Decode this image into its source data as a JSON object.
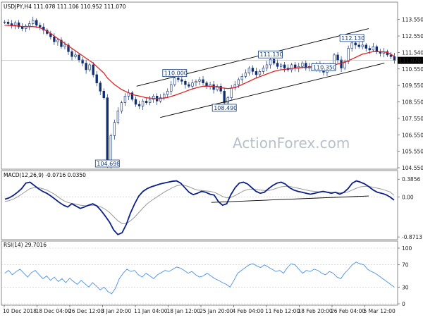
{
  "colors": {
    "candle": "#0f2f73",
    "ma": "#e02020",
    "channel": "#000000",
    "macd": "#0b1f8a",
    "signal": "#999999",
    "rsi": "#4a90e2",
    "grid": "#b8b8b8",
    "current_price_bg": "#000000",
    "current_price_text": "#ffffff",
    "tag_border": "#123a7a"
  },
  "chart_data": [
    {
      "type": "candlestick",
      "title": "USDJPY,H4  111.078 111.106 110.952 111.070",
      "watermark": "ActionForex.com",
      "ylim": [
        104.55,
        114.05
      ],
      "y_ticks": [
        "113.550",
        "112.550",
        "111.540",
        "110.550",
        "109.550",
        "108.550",
        "107.550",
        "106.550",
        "105.550",
        "104.550"
      ],
      "y_tick_values": [
        113.55,
        112.55,
        111.54,
        110.55,
        109.55,
        108.55,
        107.55,
        106.55,
        105.55,
        104.55
      ],
      "current_price": {
        "label": "111.070",
        "value": 111.07
      },
      "close_series": [
        113.4,
        113.3,
        113.2,
        113.35,
        113.1,
        113.0,
        113.15,
        113.3,
        113.5,
        113.2,
        113.1,
        112.9,
        112.7,
        112.5,
        112.2,
        112.3,
        111.9,
        112.0,
        111.6,
        111.3,
        111.4,
        111.1,
        110.9,
        110.5,
        110.8,
        110.2,
        109.7,
        109.2,
        108.8,
        104.7,
        106.5,
        107.3,
        108.0,
        108.5,
        108.9,
        109.1,
        108.7,
        108.4,
        108.3,
        108.6,
        108.5,
        108.7,
        108.9,
        108.6,
        108.8,
        109.0,
        109.2,
        109.6,
        110.0,
        109.9,
        109.8,
        109.6,
        109.5,
        109.7,
        109.8,
        109.9,
        109.7,
        109.5,
        109.6,
        109.3,
        109.5,
        109.2,
        108.49,
        108.8,
        109.4,
        109.6,
        109.9,
        110.1,
        110.3,
        110.6,
        110.4,
        110.2,
        110.4,
        110.6,
        110.8,
        111.13,
        110.9,
        110.7,
        110.8,
        110.6,
        110.5,
        110.8,
        110.6,
        110.7,
        110.9,
        110.6,
        110.7,
        110.8,
        110.5,
        110.8,
        110.35,
        110.6,
        110.7,
        111.4,
        111.1,
        110.6,
        111.0,
        111.8,
        112.13,
        112.0,
        111.9,
        112.0,
        111.8,
        111.7,
        111.9,
        111.6,
        111.5,
        111.6,
        111.4,
        111.3,
        111.07
      ],
      "moving_average": [
        113.2,
        113.2,
        113.18,
        113.17,
        113.15,
        113.13,
        113.12,
        113.12,
        113.12,
        113.1,
        113.05,
        112.95,
        112.85,
        112.7,
        112.55,
        112.4,
        112.25,
        112.1,
        111.95,
        111.8,
        111.65,
        111.5,
        111.35,
        111.2,
        111.05,
        110.9,
        110.7,
        110.5,
        110.3,
        110.0,
        109.8,
        109.6,
        109.45,
        109.3,
        109.2,
        109.1,
        109.0,
        108.95,
        108.9,
        108.85,
        108.8,
        108.78,
        108.76,
        108.75,
        108.76,
        108.78,
        108.82,
        108.88,
        108.95,
        109.02,
        109.1,
        109.18,
        109.26,
        109.33,
        109.4,
        109.45,
        109.5,
        109.5,
        109.5,
        109.48,
        109.46,
        109.42,
        109.38,
        109.36,
        109.38,
        109.42,
        109.5,
        109.6,
        109.7,
        109.8,
        109.9,
        110.0,
        110.08,
        110.16,
        110.24,
        110.32,
        110.4,
        110.45,
        110.5,
        110.52,
        110.55,
        110.58,
        110.6,
        110.62,
        110.64,
        110.65,
        110.66,
        110.68,
        110.69,
        110.7,
        110.7,
        110.7,
        110.72,
        110.78,
        110.85,
        110.9,
        110.95,
        111.05,
        111.15,
        111.25,
        111.35,
        111.45,
        111.5,
        111.55,
        111.6,
        111.6,
        111.6,
        111.58,
        111.55,
        111.45,
        111.3
      ],
      "channel_upper": [
        {
          "x": 0.34,
          "y": 109.5
        },
        {
          "x": 0.93,
          "y": 113.0
        }
      ],
      "channel_lower": [
        {
          "x": 0.4,
          "y": 107.6
        },
        {
          "x": 0.97,
          "y": 110.9
        }
      ],
      "annotations": [
        {
          "label": "104.698",
          "value": 104.698,
          "index": 29
        },
        {
          "label": "110.000",
          "value": 110.0,
          "index": 48
        },
        {
          "label": "108.490",
          "value": 108.49,
          "index": 62
        },
        {
          "label": "111.130",
          "value": 111.13,
          "index": 75
        },
        {
          "label": "110.350",
          "value": 110.35,
          "index": 90
        },
        {
          "label": "112.130",
          "value": 112.13,
          "index": 98
        }
      ]
    },
    {
      "type": "line",
      "title": "MACD(12,26,9) -0.0716 0.0350",
      "ylim": [
        -0.9,
        0.42
      ],
      "y_ticks": [
        "0.3856",
        "0.00",
        "-0.8713"
      ],
      "y_tick_values": [
        0.3856,
        0.0,
        -0.8713
      ],
      "series": [
        {
          "values": [
            -0.05,
            -0.02,
            0.03,
            0.1,
            0.18,
            0.3,
            0.32,
            0.25,
            0.18,
            0.12,
            0.08,
            0.02,
            -0.05,
            -0.12,
            -0.18,
            -0.22,
            -0.15,
            -0.2,
            -0.25,
            -0.22,
            -0.18,
            -0.15,
            -0.2,
            -0.3,
            -0.42,
            -0.55,
            -0.72,
            -0.82,
            -0.78,
            -0.6,
            -0.35,
            -0.15,
            0.02,
            0.12,
            0.18,
            0.22,
            0.25,
            0.28,
            0.3,
            0.32,
            0.34,
            0.35,
            0.3,
            0.2,
            0.1,
            0.05,
            0.08,
            0.12,
            0.1,
            0.06,
            0.04,
            -0.1,
            -0.18,
            -0.15,
            0.05,
            0.2,
            0.3,
            0.32,
            0.28,
            0.2,
            0.12,
            0.08,
            0.1,
            0.18,
            0.25,
            0.3,
            0.32,
            0.28,
            0.2,
            0.15,
            0.12,
            0.1,
            0.08,
            0.06,
            0.08,
            0.1,
            0.12,
            0.1,
            0.08,
            0.1,
            0.06,
            0.1,
            0.18,
            0.3,
            0.35,
            0.32,
            0.28,
            0.22,
            0.15,
            0.1,
            0.08,
            0.05,
            0.0,
            -0.07
          ]
        },
        {
          "values": [
            -0.1,
            -0.08,
            -0.05,
            0.0,
            0.06,
            0.12,
            0.18,
            0.2,
            0.2,
            0.18,
            0.15,
            0.1,
            0.05,
            -0.02,
            -0.08,
            -0.12,
            -0.14,
            -0.16,
            -0.18,
            -0.19,
            -0.19,
            -0.18,
            -0.19,
            -0.22,
            -0.27,
            -0.34,
            -0.43,
            -0.52,
            -0.58,
            -0.58,
            -0.52,
            -0.44,
            -0.34,
            -0.24,
            -0.15,
            -0.08,
            -0.02,
            0.04,
            0.1,
            0.15,
            0.2,
            0.24,
            0.26,
            0.25,
            0.22,
            0.18,
            0.15,
            0.14,
            0.13,
            0.12,
            0.1,
            0.06,
            0.01,
            -0.02,
            -0.01,
            0.03,
            0.08,
            0.13,
            0.16,
            0.17,
            0.16,
            0.15,
            0.14,
            0.14,
            0.16,
            0.19,
            0.22,
            0.23,
            0.23,
            0.21,
            0.19,
            0.17,
            0.15,
            0.13,
            0.12,
            0.11,
            0.11,
            0.11,
            0.1,
            0.1,
            0.09,
            0.09,
            0.11,
            0.15,
            0.19,
            0.22,
            0.23,
            0.23,
            0.21,
            0.19,
            0.17,
            0.14,
            0.11,
            0.035
          ]
        }
      ],
      "trendline": [
        {
          "x": 0.53,
          "y": -0.12
        },
        {
          "x": 0.93,
          "y": 0.02
        }
      ]
    },
    {
      "type": "line",
      "title": "RSI(14) 29.7016",
      "ylim": [
        0,
        100
      ],
      "y_ticks": [
        "100",
        "70",
        "30",
        "0"
      ],
      "y_tick_values": [
        100,
        70,
        30,
        0
      ],
      "series": [
        {
          "values": [
            55,
            60,
            52,
            58,
            62,
            55,
            48,
            56,
            60,
            52,
            45,
            50,
            42,
            48,
            40,
            45,
            38,
            46,
            40,
            35,
            42,
            36,
            30,
            38,
            32,
            25,
            30,
            22,
            18,
            28,
            45,
            55,
            62,
            58,
            60,
            52,
            48,
            55,
            50,
            45,
            52,
            56,
            60,
            58,
            62,
            66,
            64,
            60,
            55,
            58,
            52,
            48,
            50,
            55,
            50,
            45,
            42,
            38,
            35,
            30,
            42,
            55,
            60,
            65,
            70,
            72,
            68,
            65,
            70,
            66,
            62,
            58,
            60,
            55,
            65,
            72,
            70,
            62,
            55,
            60,
            58,
            62,
            60,
            55,
            52,
            58,
            55,
            48,
            45,
            55,
            62,
            70,
            75,
            72,
            70,
            62,
            58,
            55,
            50,
            45,
            40,
            35,
            29.7
          ]
        }
      ]
    }
  ],
  "x_axis": {
    "labels": [
      "10 Dec 2018",
      "18 Dec 04:00",
      "26 Dec 12:00",
      "3 Jan 20:00",
      "11 Jan 04:00",
      "18 Jan 12:00",
      "25 Jan 20:00",
      "4 Feb 04:00",
      "11 Feb 12:00",
      "18 Feb 20:00",
      "26 Feb 04:00",
      "5 Mar 12:00"
    ]
  }
}
